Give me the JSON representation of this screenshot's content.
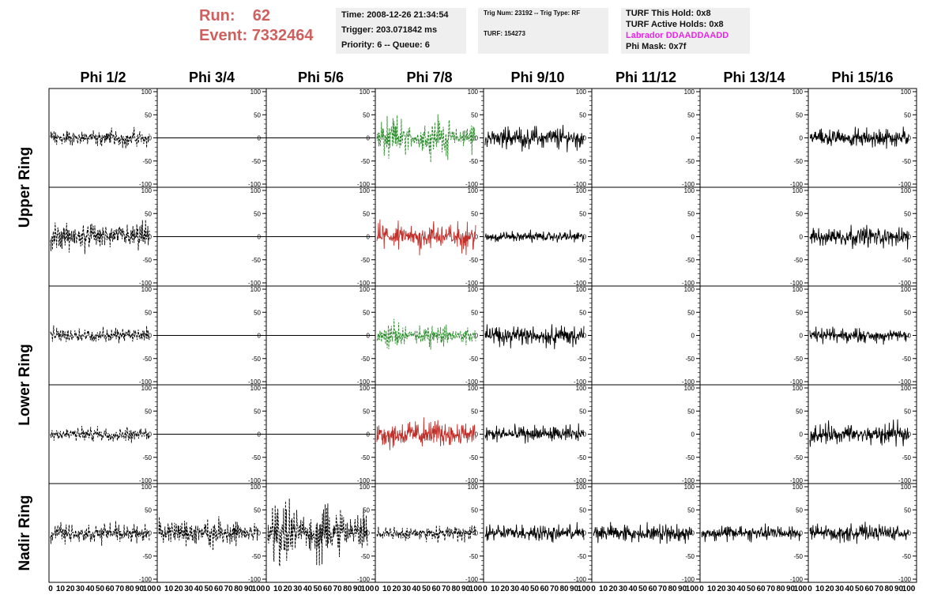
{
  "header": {
    "run_label": "Run:",
    "run_value": "62",
    "event_label": "Event:",
    "event_value": "7332464",
    "time": "Time: 2008-12-26 21:34:54",
    "trigger": "Trigger: 203.071842 ms",
    "priority": "Priority: 6 -- Queue: 6",
    "trig_num": "Trig Num: 23192 -- Trig Type: RF",
    "turf": "TURF: 154273",
    "turf_this_hold": "TURF This Hold: 0x8",
    "turf_active_holds": "TURF Active Holds: 0x8",
    "labrador": "Labrador DDAADDAADD",
    "phi_mask": "Phi Mask: 0x7f"
  },
  "colors": {
    "header_red": "#d0605e",
    "box_bg": "#efefef",
    "labrador_magenta": "#ee22ee",
    "trace_black": "#000000",
    "trace_green": "#2a8a2a",
    "trace_red": "#c0302a"
  },
  "chart_data": {
    "type": "line",
    "columns": [
      "Phi 1/2",
      "Phi 3/4",
      "Phi 5/6",
      "Phi 7/8",
      "Phi 9/10",
      "Phi 11/12",
      "Phi 13/14",
      "Phi 15/16"
    ],
    "row_groups": [
      {
        "label": "Upper Ring",
        "rows": [
          0,
          1
        ]
      },
      {
        "label": "Lower Ring",
        "rows": [
          2,
          3
        ]
      },
      {
        "label": "Nadir Ring",
        "rows": [
          4
        ]
      }
    ],
    "xlim": [
      0,
      100
    ],
    "ylim": [
      -100,
      100
    ],
    "y_ticks": [
      "100",
      "50",
      "0",
      "-50",
      "-100"
    ],
    "x_tick_labels": [
      "0",
      "10",
      "20",
      "30",
      "40",
      "50",
      "60",
      "70",
      "80",
      "90",
      "100"
    ],
    "panels": [
      [
        {
          "style": "dashed",
          "color": "black",
          "amp": 18,
          "env": "flat"
        },
        {
          "style": "flat"
        },
        {
          "style": "flat"
        },
        {
          "style": "dashed",
          "color": "green",
          "amp": 45,
          "env": "beat"
        },
        {
          "style": "solid",
          "color": "black",
          "amp": 22,
          "env": "flat"
        },
        {
          "style": "empty"
        },
        {
          "style": "empty"
        },
        {
          "style": "solid",
          "color": "black",
          "amp": 20,
          "env": "flat"
        }
      ],
      [
        {
          "style": "dashed",
          "color": "black",
          "amp": 30,
          "env": "flat"
        },
        {
          "style": "flat"
        },
        {
          "style": "flat"
        },
        {
          "style": "solid",
          "color": "red",
          "amp": 30,
          "env": "flat"
        },
        {
          "style": "solid",
          "color": "black",
          "amp": 12,
          "env": "flat"
        },
        {
          "style": "empty"
        },
        {
          "style": "empty"
        },
        {
          "style": "solid",
          "color": "black",
          "amp": 22,
          "env": "flat"
        }
      ],
      [
        {
          "style": "dashed",
          "color": "black",
          "amp": 16,
          "env": "flat"
        },
        {
          "style": "flat"
        },
        {
          "style": "flat"
        },
        {
          "style": "dashed",
          "color": "green",
          "amp": 28,
          "env": "beat"
        },
        {
          "style": "solid",
          "color": "black",
          "amp": 22,
          "env": "flat"
        },
        {
          "style": "empty"
        },
        {
          "style": "empty"
        },
        {
          "style": "solid",
          "color": "black",
          "amp": 15,
          "env": "flat"
        }
      ],
      [
        {
          "style": "dashed",
          "color": "black",
          "amp": 16,
          "env": "flat"
        },
        {
          "style": "flat"
        },
        {
          "style": "flat"
        },
        {
          "style": "solid",
          "color": "red",
          "amp": 28,
          "env": "flat"
        },
        {
          "style": "solid",
          "color": "black",
          "amp": 18,
          "env": "flat"
        },
        {
          "style": "empty"
        },
        {
          "style": "empty"
        },
        {
          "style": "solid",
          "color": "black",
          "amp": 22,
          "env": "flat"
        }
      ],
      [
        {
          "style": "dashed",
          "color": "black",
          "amp": 20,
          "env": "flat"
        },
        {
          "style": "dashed",
          "color": "black",
          "amp": 28,
          "env": "flat"
        },
        {
          "style": "dashed",
          "color": "black",
          "amp": 70,
          "env": "beat"
        },
        {
          "style": "dashed",
          "color": "black",
          "amp": 16,
          "env": "flat"
        },
        {
          "style": "solid",
          "color": "black",
          "amp": 18,
          "env": "flat"
        },
        {
          "style": "solid",
          "color": "black",
          "amp": 20,
          "env": "flat"
        },
        {
          "style": "solid",
          "color": "black",
          "amp": 18,
          "env": "flat"
        },
        {
          "style": "solid",
          "color": "black",
          "amp": 18,
          "env": "flat"
        }
      ]
    ]
  }
}
